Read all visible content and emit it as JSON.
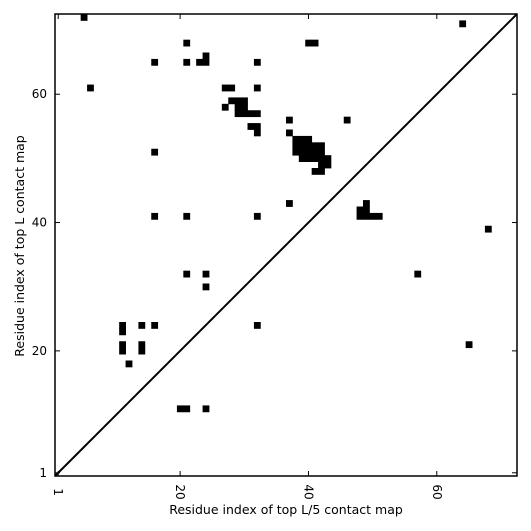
{
  "chart_data": {
    "type": "heatmap",
    "title": "",
    "xlabel": "Residue index of top L/5 contact map",
    "ylabel": "Residue index of top L contact map",
    "xlim": [
      0.5,
      72.5
    ],
    "ylim": [
      0.5,
      72.5
    ],
    "x_ticks": [
      1,
      20,
      40,
      60
    ],
    "y_ticks": [
      1,
      20,
      40,
      60
    ],
    "x_tick_labels": [
      "1",
      "20",
      "40",
      "60"
    ],
    "y_tick_labels": [
      "1",
      "20",
      "40",
      "60"
    ],
    "diagonal": true,
    "grid": false,
    "cell_color": "#000000",
    "contacts": [
      [
        5,
        72
      ],
      [
        64,
        71
      ],
      [
        21,
        68
      ],
      [
        40,
        68
      ],
      [
        41,
        68
      ],
      [
        16,
        65
      ],
      [
        21,
        65
      ],
      [
        23,
        65
      ],
      [
        24,
        65
      ],
      [
        32,
        65
      ],
      [
        24,
        66
      ],
      [
        6,
        61
      ],
      [
        27,
        61
      ],
      [
        28,
        61
      ],
      [
        32,
        61
      ],
      [
        28,
        59
      ],
      [
        29,
        59
      ],
      [
        30,
        59
      ],
      [
        29,
        58
      ],
      [
        30,
        58
      ],
      [
        27,
        58
      ],
      [
        29,
        57
      ],
      [
        30,
        57
      ],
      [
        31,
        57
      ],
      [
        32,
        57
      ],
      [
        37,
        56
      ],
      [
        46,
        56
      ],
      [
        31,
        55
      ],
      [
        32,
        55
      ],
      [
        37,
        54
      ],
      [
        32,
        54
      ],
      [
        38,
        53
      ],
      [
        39,
        53
      ],
      [
        40,
        53
      ],
      [
        38,
        52
      ],
      [
        39,
        52
      ],
      [
        40,
        52
      ],
      [
        41,
        52
      ],
      [
        42,
        52
      ],
      [
        38,
        51
      ],
      [
        39,
        51
      ],
      [
        40,
        51
      ],
      [
        41,
        51
      ],
      [
        42,
        51
      ],
      [
        39,
        50
      ],
      [
        40,
        50
      ],
      [
        41,
        50
      ],
      [
        42,
        50
      ],
      [
        43,
        50
      ],
      [
        42,
        49
      ],
      [
        43,
        49
      ],
      [
        41,
        48
      ],
      [
        42,
        48
      ],
      [
        16,
        51
      ],
      [
        37,
        43
      ],
      [
        49,
        43
      ],
      [
        48,
        42
      ],
      [
        49,
        42
      ],
      [
        48,
        41
      ],
      [
        49,
        41
      ],
      [
        50,
        41
      ],
      [
        51,
        41
      ],
      [
        16,
        41
      ],
      [
        21,
        41
      ],
      [
        32,
        41
      ],
      [
        68,
        39
      ],
      [
        21,
        32
      ],
      [
        24,
        32
      ],
      [
        57,
        32
      ],
      [
        24,
        30
      ],
      [
        11,
        24
      ],
      [
        14,
        24
      ],
      [
        16,
        24
      ],
      [
        32,
        24
      ],
      [
        11,
        23
      ],
      [
        11,
        21
      ],
      [
        14,
        21
      ],
      [
        65,
        21
      ],
      [
        11,
        20
      ],
      [
        14,
        20
      ],
      [
        12,
        18
      ],
      [
        20,
        11
      ],
      [
        21,
        11
      ],
      [
        24,
        11
      ]
    ]
  }
}
